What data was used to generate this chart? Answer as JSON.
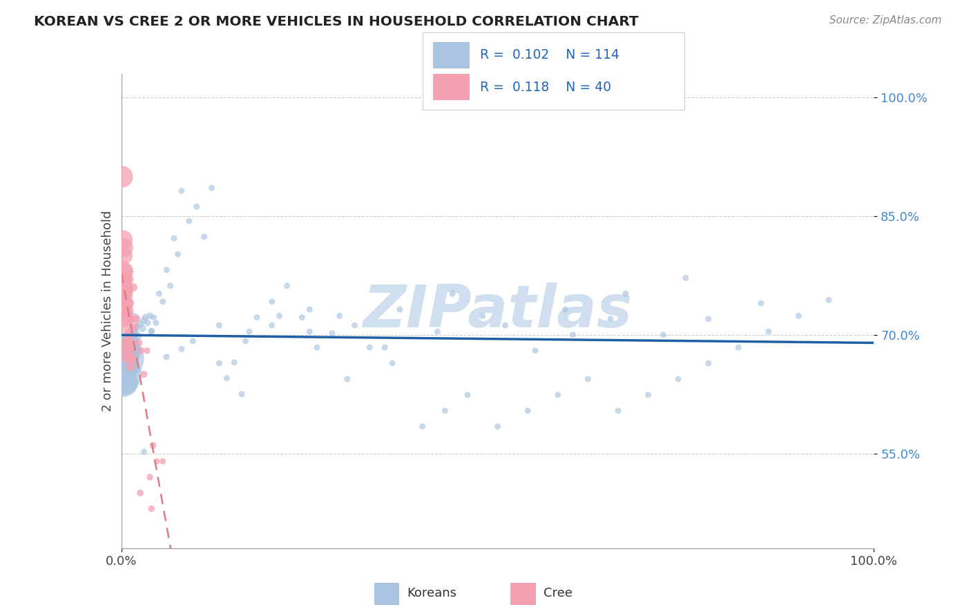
{
  "title": "KOREAN VS CREE 2 OR MORE VEHICLES IN HOUSEHOLD CORRELATION CHART",
  "source": "Source: ZipAtlas.com",
  "ylabel": "2 or more Vehicles in Household",
  "xlim": [
    0.0,
    1.0
  ],
  "ylim": [
    0.43,
    1.03
  ],
  "yticks": [
    0.55,
    0.7,
    0.85,
    1.0
  ],
  "ytick_labels": [
    "55.0%",
    "70.0%",
    "85.0%",
    "100.0%"
  ],
  "xtick_labels": [
    "0.0%",
    "100.0%"
  ],
  "korean_R": "0.102",
  "korean_N": "114",
  "cree_R": "0.118",
  "cree_N": "40",
  "korean_color": "#a8c4e0",
  "cree_color": "#f4a0b0",
  "korean_line_color": "#1f5fa6",
  "cree_line_color": "#e07888",
  "watermark_color": "#d0dff0",
  "background_color": "#ffffff",
  "korean_x": [
    0.001,
    0.001,
    0.002,
    0.002,
    0.003,
    0.003,
    0.003,
    0.004,
    0.004,
    0.004,
    0.005,
    0.005,
    0.005,
    0.006,
    0.006,
    0.006,
    0.007,
    0.007,
    0.007,
    0.008,
    0.008,
    0.009,
    0.009,
    0.01,
    0.01,
    0.011,
    0.011,
    0.012,
    0.012,
    0.013,
    0.014,
    0.015,
    0.016,
    0.017,
    0.018,
    0.02,
    0.022,
    0.025,
    0.028,
    0.03,
    0.032,
    0.035,
    0.038,
    0.04,
    0.043,
    0.046,
    0.05,
    0.055,
    0.06,
    0.065,
    0.07,
    0.075,
    0.08,
    0.09,
    0.1,
    0.11,
    0.12,
    0.14,
    0.15,
    0.16,
    0.18,
    0.2,
    0.22,
    0.24,
    0.26,
    0.28,
    0.3,
    0.33,
    0.36,
    0.4,
    0.43,
    0.46,
    0.5,
    0.54,
    0.58,
    0.62,
    0.66,
    0.7,
    0.74,
    0.78,
    0.82,
    0.86,
    0.9,
    0.94,
    0.04,
    0.08,
    0.13,
    0.17,
    0.21,
    0.25,
    0.29,
    0.35,
    0.42,
    0.48,
    0.55,
    0.6,
    0.65,
    0.72,
    0.78,
    0.85,
    0.03,
    0.06,
    0.095,
    0.13,
    0.165,
    0.2,
    0.25,
    0.31,
    0.37,
    0.44,
    0.51,
    0.59,
    0.67,
    0.75
  ],
  "korean_y": [
    0.67,
    0.65,
    0.68,
    0.66,
    0.68,
    0.66,
    0.64,
    0.67,
    0.66,
    0.64,
    0.68,
    0.67,
    0.65,
    0.68,
    0.67,
    0.65,
    0.68,
    0.67,
    0.65,
    0.68,
    0.665,
    0.68,
    0.665,
    0.685,
    0.668,
    0.682,
    0.668,
    0.688,
    0.672,
    0.692,
    0.698,
    0.705,
    0.695,
    0.722,
    0.702,
    0.71,
    0.698,
    0.714,
    0.708,
    0.718,
    0.722,
    0.715,
    0.724,
    0.705,
    0.722,
    0.715,
    0.752,
    0.742,
    0.782,
    0.762,
    0.822,
    0.802,
    0.882,
    0.844,
    0.862,
    0.824,
    0.886,
    0.645,
    0.665,
    0.625,
    0.722,
    0.742,
    0.762,
    0.722,
    0.684,
    0.702,
    0.644,
    0.684,
    0.664,
    0.584,
    0.604,
    0.624,
    0.584,
    0.604,
    0.624,
    0.644,
    0.604,
    0.624,
    0.644,
    0.664,
    0.684,
    0.704,
    0.724,
    0.744,
    0.704,
    0.682,
    0.664,
    0.704,
    0.724,
    0.704,
    0.724,
    0.684,
    0.704,
    0.724,
    0.68,
    0.7,
    0.72,
    0.7,
    0.72,
    0.74,
    0.552,
    0.672,
    0.692,
    0.712,
    0.692,
    0.712,
    0.732,
    0.712,
    0.732,
    0.752,
    0.712,
    0.732,
    0.752,
    0.772
  ],
  "korean_sizes": [
    350,
    280,
    240,
    210,
    190,
    170,
    155,
    145,
    135,
    125,
    115,
    108,
    100,
    94,
    88,
    82,
    76,
    70,
    65,
    60,
    56,
    52,
    48,
    45,
    42,
    38,
    35,
    32,
    30,
    28,
    24,
    20,
    18,
    16,
    14,
    12,
    11,
    10,
    10,
    9,
    9,
    8,
    8,
    8,
    7,
    7,
    7,
    7,
    7,
    7,
    7,
    7,
    7,
    7,
    7,
    7,
    7,
    7,
    7,
    7,
    7,
    7,
    7,
    7,
    7,
    7,
    7,
    7,
    7,
    7,
    7,
    7,
    7,
    7,
    7,
    7,
    7,
    7,
    7,
    7,
    7,
    7,
    7,
    7,
    7,
    7,
    7,
    7,
    7,
    7,
    7,
    7,
    7,
    7,
    7,
    7,
    7,
    7,
    7,
    7,
    7,
    7,
    7,
    7,
    7,
    7,
    7,
    7,
    7,
    7,
    7,
    7,
    7,
    7
  ],
  "cree_x": [
    0.001,
    0.001,
    0.002,
    0.002,
    0.003,
    0.003,
    0.004,
    0.004,
    0.005,
    0.005,
    0.006,
    0.006,
    0.007,
    0.007,
    0.008,
    0.008,
    0.009,
    0.009,
    0.01,
    0.011,
    0.012,
    0.013,
    0.015,
    0.017,
    0.02,
    0.023,
    0.026,
    0.03,
    0.034,
    0.038,
    0.042,
    0.047,
    0.055,
    0.016,
    0.008,
    0.003,
    0.006,
    0.012,
    0.025,
    0.04
  ],
  "cree_y": [
    0.68,
    0.9,
    0.78,
    0.82,
    0.81,
    0.75,
    0.76,
    0.8,
    0.74,
    0.78,
    0.72,
    0.755,
    0.73,
    0.77,
    0.74,
    0.71,
    0.72,
    0.69,
    0.7,
    0.67,
    0.66,
    0.72,
    0.67,
    0.71,
    0.72,
    0.69,
    0.68,
    0.65,
    0.68,
    0.52,
    0.56,
    0.54,
    0.54,
    0.76,
    0.68,
    0.77,
    0.73,
    0.69,
    0.5,
    0.48
  ],
  "cree_sizes": [
    100,
    85,
    78,
    70,
    65,
    60,
    55,
    50,
    48,
    44,
    40,
    38,
    35,
    33,
    30,
    28,
    26,
    24,
    22,
    20,
    18,
    16,
    14,
    12,
    11,
    10,
    9,
    9,
    8,
    8,
    8,
    7,
    7,
    12,
    22,
    48,
    30,
    15,
    8,
    8
  ]
}
